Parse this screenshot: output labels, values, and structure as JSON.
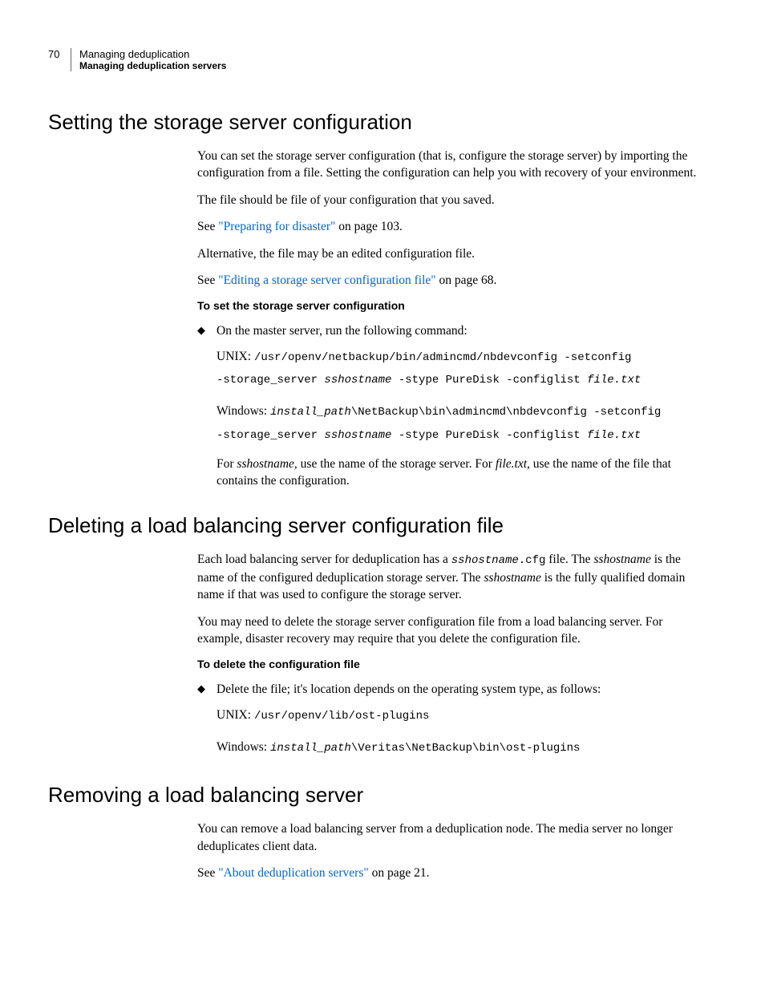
{
  "header": {
    "page_num": "70",
    "chapter": "Managing deduplication",
    "section": "Managing deduplication servers"
  },
  "s1": {
    "heading": "Setting the storage server configuration",
    "p1": "You can set the storage server configuration (that is, configure the storage server) by importing the configuration from a file. Setting the configuration can help you with recovery of your environment.",
    "p2": "The file should be file of your configuration that you saved.",
    "p3a": "See ",
    "p3link": "\"Preparing for disaster\"",
    "p3b": " on page 103.",
    "p4": "Alternative, the file may be an edited configuration file.",
    "p5a": "See ",
    "p5link": "\"Editing a storage server configuration file\"",
    "p5b": " on page 68.",
    "proc_title": "To set the storage server configuration",
    "bullet1": "On the master server, run the following command:",
    "unix_label": "UNIX: ",
    "win_label": "Windows: ",
    "unix_cmd1": "/usr/openv/netbackup/bin/admincmd/nbdevconfig -setconfig",
    "cmd_line2a": "-storage_server ",
    "cmd_line2_ital": "sshostname",
    "cmd_line2b": " -stype PureDisk -configlist ",
    "cmd_line2_ital2": "file.txt",
    "win_cmd1_ital": "install_path",
    "win_cmd1": "\\NetBackup\\bin\\admincmd\\nbdevconfig -setconfig",
    "note1a": "For ",
    "note1_ital1": "sshostname",
    "note1b": ", use the name of the storage server. For ",
    "note1_ital2": "file.txt",
    "note1c": ", use the name of the file that contains the configuration."
  },
  "s2": {
    "heading": "Deleting a load balancing server configuration file",
    "p1a": "Each load balancing server for deduplication has a ",
    "p1_mono_ital": "sshostname",
    "p1_mono": ".cfg",
    "p1b": " file. The ",
    "p1_ital1": "sshostname",
    "p1c": " is the name of the configured deduplication storage server. The ",
    "p1_ital2": "sshostname",
    "p1d": " is the fully qualified domain name if that was used to configure the storage server.",
    "p2": "You may need to delete the storage server configuration file from a load balancing server. For example, disaster recovery may require that you delete the configuration file.",
    "proc_title": "To delete the configuration file",
    "bullet1": "Delete the file; it's location depends on the operating system type, as follows:",
    "unix_label": "UNIX: ",
    "unix_path": "/usr/openv/lib/ost-plugins",
    "win_label": "Windows: ",
    "win_ital": "install_path",
    "win_path": "\\Veritas\\NetBackup\\bin\\ost-plugins"
  },
  "s3": {
    "heading": "Removing a load balancing server",
    "p1": "You can remove a load balancing server from a deduplication node. The media server no longer deduplicates client data.",
    "p2a": "See ",
    "p2link": "\"About deduplication servers\"",
    "p2b": " on page 21."
  }
}
